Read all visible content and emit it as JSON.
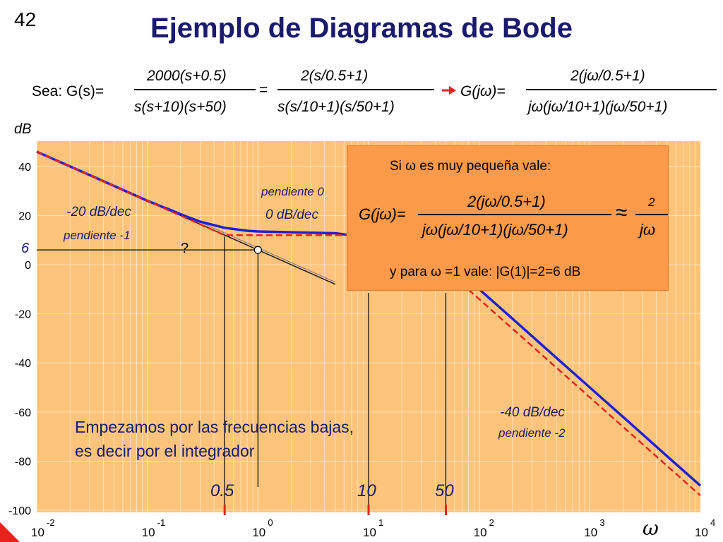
{
  "slide": {
    "number": "42",
    "title": "Ejemplo de Diagramas de Bode"
  },
  "equation": {
    "sea": "Sea: G(s)=",
    "num1": "2000(s+0.5)",
    "den1": "s(s+10)(s+50)",
    "equals": "=",
    "num2": "2(s/0.5+1)",
    "den2": "s(s/10+1)(s/50+1)",
    "gjw": "G(jω)=",
    "num3": "2(jω/0.5+1)",
    "den3": "jω(jω/10+1)(jω/50+1)"
  },
  "callout": {
    "line1": "Si ω es muy pequeña vale:",
    "gjw": "G(jω)=",
    "num": "2(jω/0.5+1)",
    "den": "jω(jω/10+1)(jω/50+1)",
    "approx": "≈",
    "approx_num": "2",
    "approx_den": "jω",
    "line3": "y para ω =1 vale: |G(1)|=2=6 dB"
  },
  "annotations": {
    "slope_minus20": "-20 dB/dec",
    "pendiente_minus1": "pendiente -1",
    "pendiente_0": "pendiente 0",
    "slope_0": "0 dB/dec",
    "slope_minus40": "-40 dB/dec",
    "pendiente_minus2": "pendiente -2",
    "six_label": "6",
    "question": "?",
    "note_line1": "Empezamos por las frecuencias bajas,",
    "note_line2": "es decir por el integrador",
    "break_05": "0.5",
    "break_10": "10",
    "break_50": "50",
    "omega": "ω"
  },
  "colors": {
    "background": "#fcc47a",
    "callout": "#fd9a49",
    "blue_curve": "#1f1fd6",
    "red_asymptote": "#e8231e",
    "title": "#1a1a6e",
    "break_marker": "#e0271b"
  },
  "chart_data": {
    "type": "line",
    "ylabel": "dB",
    "xlabel": "ω",
    "xscale": "log",
    "xlim": [
      0.01,
      10000
    ],
    "ylim": [
      -100,
      45
    ],
    "yticks": [
      40,
      20,
      0,
      -20,
      -40,
      -60,
      -80,
      -100
    ],
    "xticks": [
      {
        "base": "10",
        "exp": "-2",
        "value": 0.01
      },
      {
        "base": "10",
        "exp": "-1",
        "value": 0.1
      },
      {
        "base": "10",
        "exp": "0",
        "value": 1
      },
      {
        "base": "10",
        "exp": "1",
        "value": 10
      },
      {
        "base": "10",
        "exp": "2",
        "value": 100
      },
      {
        "base": "10",
        "exp": "3",
        "value": 1000
      },
      {
        "base": "10",
        "exp": "4",
        "value": 10000
      }
    ],
    "grid": true,
    "break_frequencies": [
      0.5,
      10,
      50
    ],
    "series": [
      {
        "x": [
          0.01,
          0.03,
          0.1,
          0.2,
          0.3,
          0.5,
          0.8,
          1,
          2,
          5,
          10,
          20,
          50,
          100,
          200,
          500,
          1000,
          2000,
          5000,
          10000
        ],
        "y": [
          46,
          36.5,
          26,
          20.5,
          17.5,
          15,
          13.8,
          13.5,
          13.2,
          12.8,
          11,
          8,
          0,
          -10,
          -22,
          -38,
          -50,
          -62,
          -78,
          -90
        ]
      },
      {
        "x": [
          0.01,
          0.5,
          10,
          50,
          10000
        ],
        "y": [
          46,
          12,
          12,
          -2,
          -94
        ]
      },
      {
        "x": [
          0.15,
          5
        ],
        "y": [
          22.5,
          -8
        ]
      }
    ],
    "point": {
      "x": 1,
      "y": 6
    }
  }
}
